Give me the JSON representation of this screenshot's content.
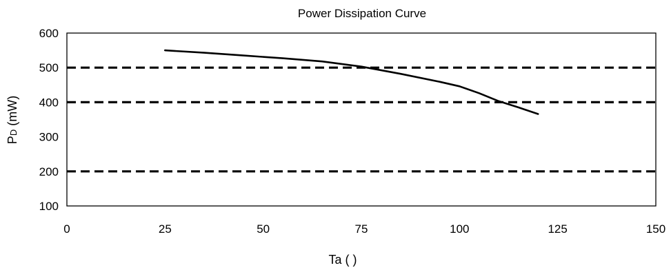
{
  "chart_data": {
    "type": "line",
    "title": "Power Dissipation Curve",
    "xlabel": "Ta ( )",
    "ylabel": "PD (mW)",
    "ylabel_main": "P",
    "ylabel_sub": "D",
    "ylabel_rest": " (mW)",
    "xlim": [
      0,
      150
    ],
    "ylim": [
      100,
      600
    ],
    "xticks": [
      0,
      25,
      50,
      75,
      100,
      125,
      150
    ],
    "yticks": [
      100,
      200,
      300,
      400,
      500,
      600
    ],
    "grid": false,
    "legend": "none",
    "series": [
      {
        "x": [
          25,
          35,
          45,
          55,
          65,
          75,
          85,
          95,
          100,
          105,
          110,
          115,
          120
        ],
        "y": [
          550,
          543,
          535,
          527,
          518,
          503,
          482,
          459,
          446,
          426,
          403,
          385,
          366
        ],
        "color": "#000000"
      }
    ],
    "reference_lines": [
      {
        "y": 500,
        "style": "dashed",
        "color": "#000000"
      },
      {
        "y": 400,
        "style": "dashed",
        "color": "#000000"
      },
      {
        "y": 200,
        "style": "dashed",
        "color": "#000000"
      }
    ]
  }
}
